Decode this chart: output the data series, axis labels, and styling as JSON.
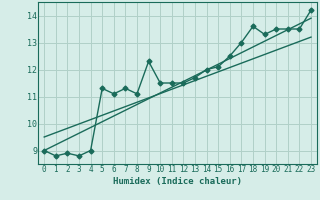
{
  "xlabel": "Humidex (Indice chaleur)",
  "xlim": [
    -0.5,
    23.5
  ],
  "ylim": [
    8.5,
    14.5
  ],
  "yticks": [
    9,
    10,
    11,
    12,
    13,
    14
  ],
  "xticks": [
    0,
    1,
    2,
    3,
    4,
    5,
    6,
    7,
    8,
    9,
    10,
    11,
    12,
    13,
    14,
    15,
    16,
    17,
    18,
    19,
    20,
    21,
    22,
    23
  ],
  "bg_color": "#d6ede8",
  "grid_color": "#b0d0c8",
  "line_color": "#1a6b5a",
  "line_width": 1.0,
  "marker": "D",
  "marker_size": 2.5,
  "data_x": [
    0,
    1,
    2,
    3,
    4,
    5,
    6,
    7,
    8,
    9,
    10,
    11,
    12,
    13,
    14,
    15,
    16,
    17,
    18,
    19,
    20,
    21,
    22,
    23
  ],
  "data_y1": [
    9.0,
    8.8,
    8.9,
    8.8,
    9.0,
    11.3,
    11.1,
    11.3,
    11.1,
    12.3,
    11.5,
    11.5,
    11.5,
    11.7,
    12.0,
    12.1,
    12.5,
    13.0,
    13.6,
    13.3,
    13.5,
    13.5,
    13.5,
    14.2
  ],
  "trend1_x": [
    0,
    23
  ],
  "trend1_y": [
    9.0,
    13.9
  ],
  "trend2_x": [
    0,
    23
  ],
  "trend2_y": [
    9.5,
    13.2
  ]
}
